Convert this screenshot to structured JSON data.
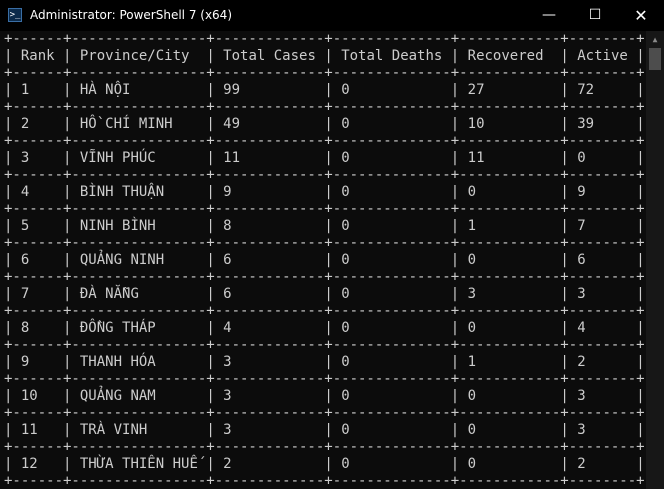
{
  "window": {
    "title": "Administrator: PowerShell 7 (x64)",
    "icon": "powershell-icon",
    "icon_glyph": ">_",
    "controls": {
      "minimize": "—",
      "maximize": "☐",
      "close": "✕"
    }
  },
  "table": {
    "headers": [
      "Rank",
      "Province/City",
      "Total Cases",
      "Total Deaths",
      "Recovered",
      "Active"
    ],
    "rows": [
      [
        "1",
        "HÀ NỘI",
        "99",
        "0",
        "27",
        "72"
      ],
      [
        "2",
        "HỒ CHÍ MINH",
        "49",
        "0",
        "10",
        "39"
      ],
      [
        "3",
        "VĨNH PHÚC",
        "11",
        "0",
        "11",
        "0"
      ],
      [
        "4",
        "BÌNH THUẬN",
        "9",
        "0",
        "0",
        "9"
      ],
      [
        "5",
        "NINH BÌNH",
        "8",
        "0",
        "1",
        "7"
      ],
      [
        "6",
        "QUẢNG NINH",
        "6",
        "0",
        "0",
        "6"
      ],
      [
        "7",
        "ĐÀ NẴNG",
        "6",
        "0",
        "3",
        "3"
      ],
      [
        "8",
        "ĐỒNG THÁP",
        "4",
        "0",
        "0",
        "4"
      ],
      [
        "9",
        "THANH HÓA",
        "3",
        "0",
        "1",
        "2"
      ],
      [
        "10",
        "QUẢNG NAM",
        "3",
        "0",
        "0",
        "3"
      ],
      [
        "11",
        "TRÀ VINH",
        "3",
        "0",
        "0",
        "3"
      ],
      [
        "12",
        "THỪA THIÊN HUẾ",
        "2",
        "0",
        "0",
        "2"
      ]
    ]
  },
  "colors": {
    "console_bg": "#0c0c0c",
    "console_fg": "#cccccc",
    "titlebar_bg": "#000000"
  }
}
